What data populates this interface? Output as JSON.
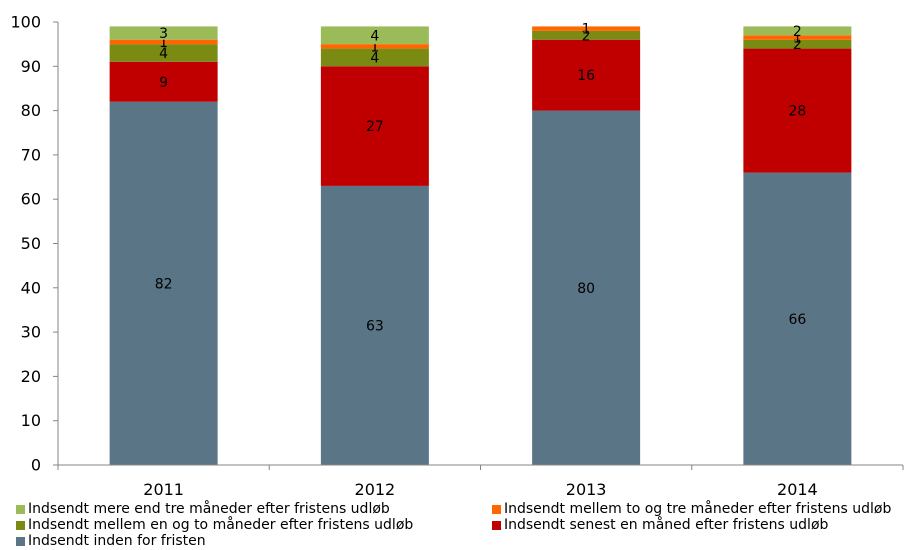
{
  "chart_data": {
    "type": "bar",
    "stacked": true,
    "categories": [
      "2011",
      "2012",
      "2013",
      "2014"
    ],
    "ylim": [
      0,
      100
    ],
    "yticks": [
      "0",
      "10",
      "20",
      "30",
      "40",
      "50",
      "60",
      "70",
      "80",
      "90",
      "100"
    ],
    "grid": false,
    "legend_position": "bottom",
    "series": [
      {
        "name": "Indsendt inden for fristen",
        "color": "#5a7586",
        "values": [
          82,
          63,
          80,
          66
        ],
        "labels": [
          "82",
          "63",
          "80",
          "66"
        ]
      },
      {
        "name": "Indsendt senest en måned efter fristens udløb",
        "color": "#c00000",
        "values": [
          9,
          27,
          16,
          28
        ],
        "labels": [
          "9",
          "27",
          "16",
          "28"
        ]
      },
      {
        "name": "Indsendt mellem en og to måneder efter fristens udløb",
        "color": "#7a8a12",
        "values": [
          4,
          4,
          2,
          2
        ],
        "labels": [
          "4",
          "4",
          "2",
          "2"
        ]
      },
      {
        "name": "Indsendt mellem to og tre måneder efter fristens udløb",
        "color": "#ff6600",
        "values": [
          1,
          1,
          1,
          1
        ],
        "labels": [
          "1",
          "1",
          "1",
          "1"
        ]
      },
      {
        "name": "Indsendt mere end tre måneder efter fristens udløb",
        "color": "#9bbb59",
        "values": [
          3,
          4,
          0,
          2
        ],
        "labels": [
          "3",
          "4",
          "",
          "2"
        ]
      }
    ]
  }
}
